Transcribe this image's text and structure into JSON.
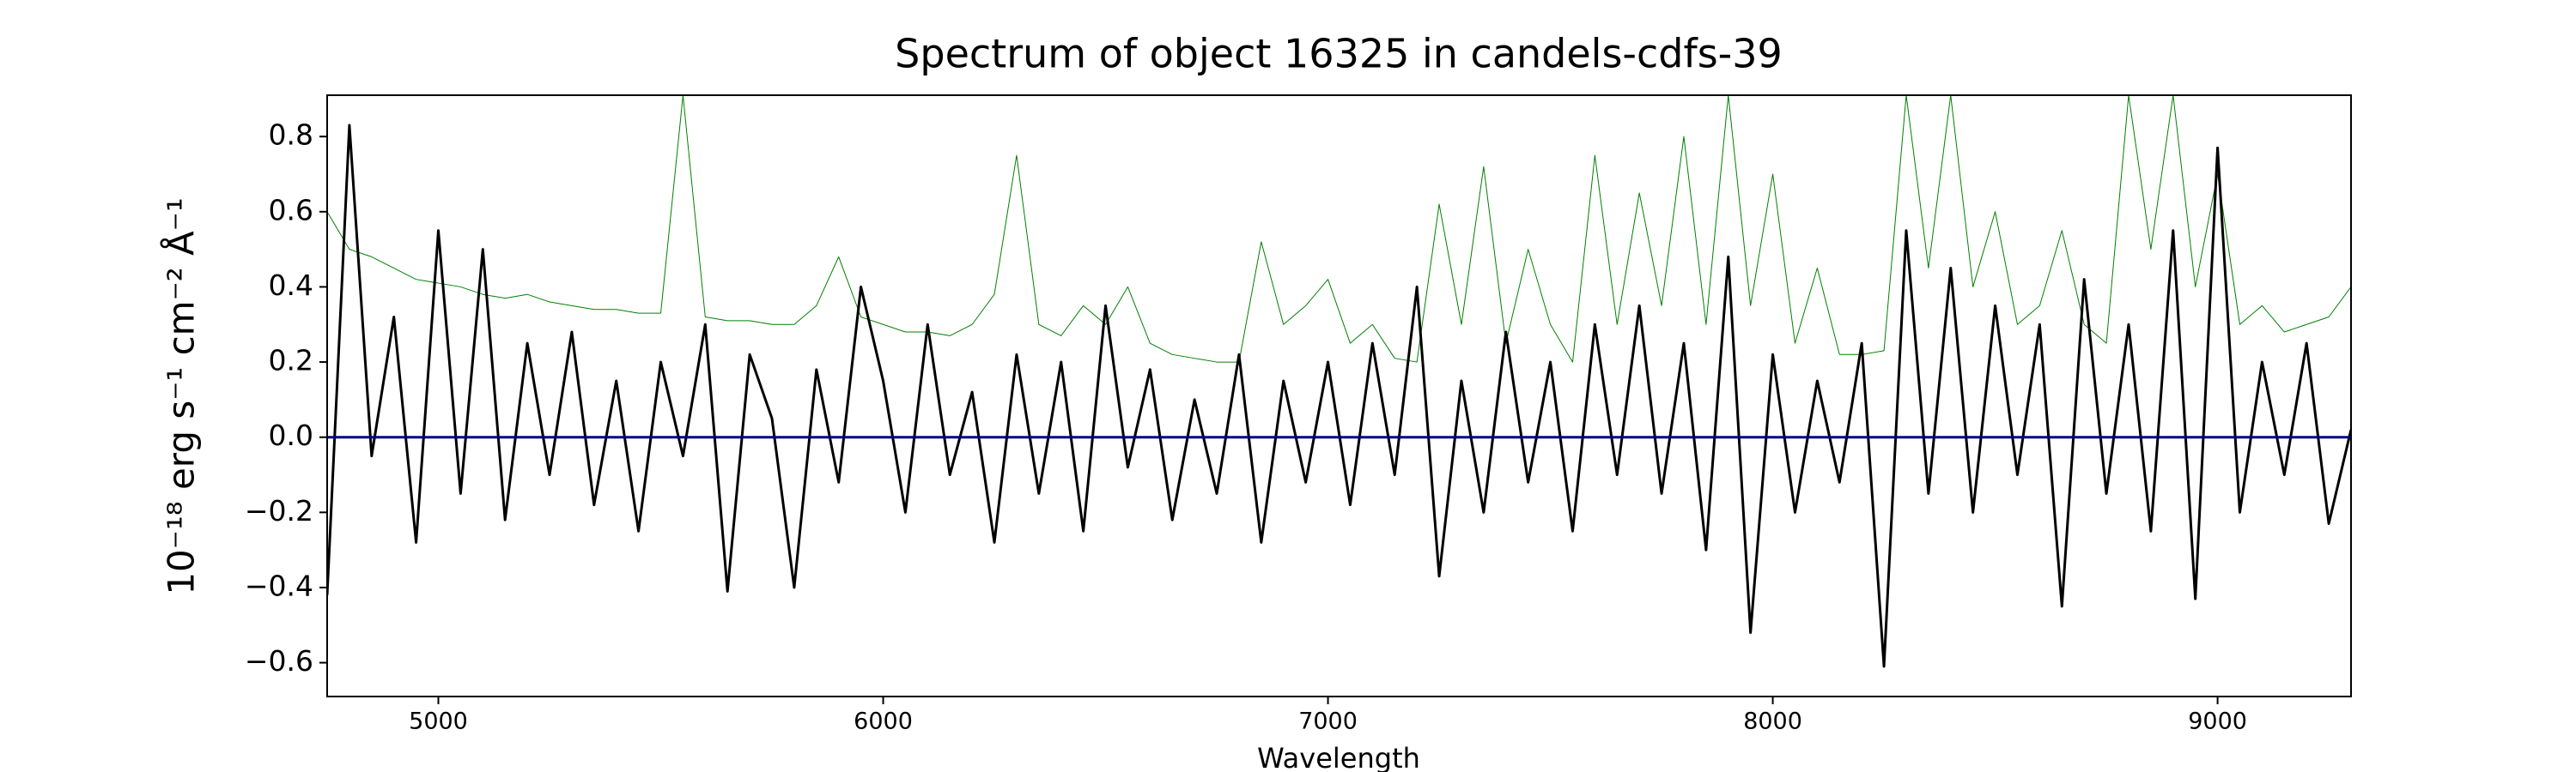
{
  "chart_data": {
    "type": "line",
    "title": "Spectrum of object 16325 in candels-cdfs-39",
    "x_label": "Wavelength",
    "y_label": "10⁻¹⁸ erg s⁻¹ cm⁻² Å⁻¹",
    "x": [
      4750,
      4800,
      4850,
      4900,
      4950,
      5000,
      5050,
      5100,
      5150,
      5200,
      5250,
      5300,
      5350,
      5400,
      5450,
      5500,
      5550,
      5600,
      5650,
      5700,
      5750,
      5800,
      5850,
      5900,
      5950,
      6000,
      6050,
      6100,
      6150,
      6200,
      6250,
      6300,
      6350,
      6400,
      6450,
      6500,
      6550,
      6600,
      6650,
      6700,
      6750,
      6800,
      6850,
      6900,
      6950,
      7000,
      7050,
      7100,
      7150,
      7200,
      7250,
      7300,
      7350,
      7400,
      7450,
      7500,
      7550,
      7600,
      7650,
      7700,
      7750,
      7800,
      7850,
      7900,
      7950,
      8000,
      8050,
      8100,
      8150,
      8200,
      8250,
      8300,
      8350,
      8400,
      8450,
      8500,
      8550,
      8600,
      8650,
      8700,
      8750,
      8800,
      8850,
      8900,
      8950,
      9000,
      9050,
      9100,
      9150,
      9200,
      9250,
      9300
    ],
    "series": [
      {
        "color": "#008000",
        "width": 1,
        "values": [
          0.6,
          0.5,
          0.48,
          0.45,
          0.42,
          0.41,
          0.4,
          0.38,
          0.37,
          0.38,
          0.36,
          0.35,
          0.34,
          0.34,
          0.33,
          0.33,
          0.91,
          0.32,
          0.31,
          0.31,
          0.3,
          0.3,
          0.35,
          0.48,
          0.32,
          0.3,
          0.28,
          0.28,
          0.27,
          0.3,
          0.38,
          0.75,
          0.3,
          0.27,
          0.35,
          0.3,
          0.4,
          0.25,
          0.22,
          0.21,
          0.2,
          0.2,
          0.52,
          0.3,
          0.35,
          0.42,
          0.25,
          0.3,
          0.21,
          0.2,
          0.62,
          0.3,
          0.72,
          0.25,
          0.5,
          0.3,
          0.2,
          0.75,
          0.3,
          0.65,
          0.35,
          0.8,
          0.3,
          0.91,
          0.35,
          0.7,
          0.25,
          0.45,
          0.22,
          0.22,
          0.23,
          0.91,
          0.45,
          0.91,
          0.4,
          0.6,
          0.3,
          0.35,
          0.55,
          0.3,
          0.25,
          0.91,
          0.5,
          0.91,
          0.4,
          0.7,
          0.3,
          0.35,
          0.28,
          0.3,
          0.32,
          0.4
        ]
      },
      {
        "color": "#000000",
        "width": 3,
        "values": [
          -0.42,
          0.83,
          -0.05,
          0.32,
          -0.28,
          0.55,
          -0.15,
          0.5,
          -0.22,
          0.25,
          -0.1,
          0.28,
          -0.18,
          0.15,
          -0.25,
          0.2,
          -0.05,
          0.3,
          -0.41,
          0.22,
          0.05,
          -0.4,
          0.18,
          -0.12,
          0.4,
          0.15,
          -0.2,
          0.3,
          -0.1,
          0.12,
          -0.28,
          0.22,
          -0.15,
          0.2,
          -0.25,
          0.35,
          -0.08,
          0.18,
          -0.22,
          0.1,
          -0.15,
          0.22,
          -0.28,
          0.15,
          -0.12,
          0.2,
          -0.18,
          0.25,
          -0.1,
          0.4,
          -0.37,
          0.15,
          -0.2,
          0.28,
          -0.12,
          0.2,
          -0.25,
          0.3,
          -0.1,
          0.35,
          -0.15,
          0.25,
          -0.3,
          0.48,
          -0.52,
          0.22,
          -0.2,
          0.15,
          -0.12,
          0.25,
          -0.61,
          0.55,
          -0.15,
          0.45,
          -0.2,
          0.35,
          -0.1,
          0.3,
          -0.45,
          0.42,
          -0.15,
          0.3,
          -0.25,
          0.55,
          -0.43,
          0.77,
          -0.2,
          0.2,
          -0.1,
          0.25,
          -0.23,
          0.02
        ]
      },
      {
        "color": "#00008b",
        "width": 3,
        "x": [
          4750,
          9300
        ],
        "values": [
          0,
          0
        ]
      }
    ],
    "xlim": [
      4750,
      9300
    ],
    "ylim": [
      -0.69,
      0.91
    ],
    "xticks": [
      5000,
      6000,
      7000,
      8000,
      9000
    ],
    "yticks": [
      {
        "value": -0.6,
        "label": "−0.6"
      },
      {
        "value": -0.4,
        "label": "−0.4"
      },
      {
        "value": -0.2,
        "label": "−0.2"
      },
      {
        "value": 0,
        "label": "0.0"
      },
      0.2,
      0.4,
      0.6,
      0.8
    ],
    "grid": false
  }
}
